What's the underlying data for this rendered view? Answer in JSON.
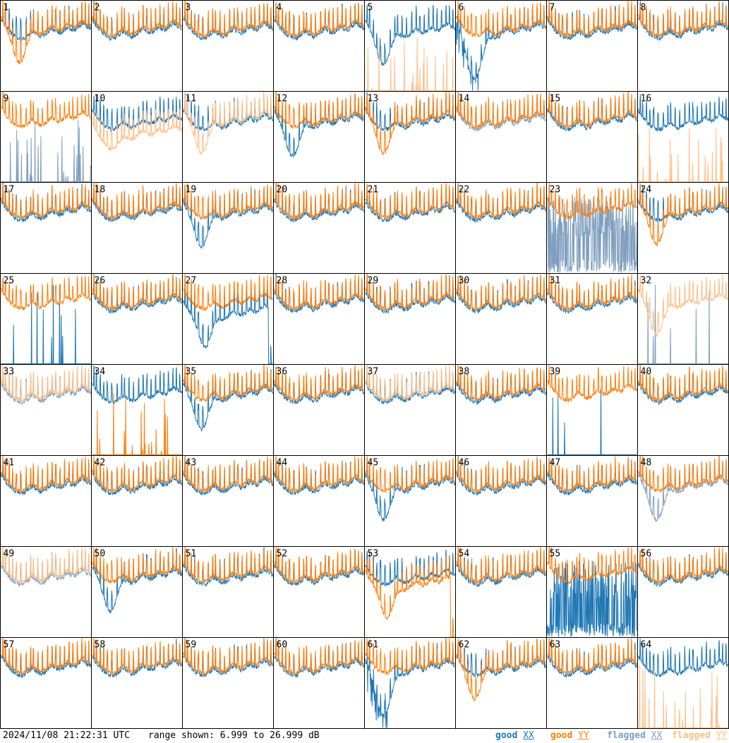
{
  "chart_data": {
    "type": "line",
    "panels": [
      1,
      2,
      3,
      4,
      5,
      6,
      7,
      8,
      9,
      10,
      11,
      12,
      13,
      14,
      15,
      16,
      17,
      18,
      19,
      20,
      21,
      22,
      23,
      24,
      25,
      26,
      27,
      28,
      29,
      30,
      31,
      32,
      33,
      34,
      35,
      36,
      37,
      38,
      39,
      40,
      41,
      42,
      43,
      44,
      45,
      46,
      47,
      48,
      49,
      50,
      51,
      52,
      53,
      54,
      55,
      56,
      57,
      58,
      59,
      60,
      61,
      62,
      63,
      64
    ],
    "range_db": [
      6.999,
      26.999
    ],
    "x_points": 260,
    "base_shape": [
      23.0,
      21.5,
      20.5,
      19.5,
      19.0,
      18.6,
      18.8,
      19.5,
      20.2,
      19.6,
      19.0,
      19.2,
      20.0,
      20.8,
      20.2,
      19.8,
      20.3,
      21.2,
      20.7,
      20.5,
      21.4,
      22.0,
      21.3,
      20.8
    ],
    "spur_positions": [
      0.02,
      0.05,
      0.09,
      0.13,
      0.17,
      0.22,
      0.28,
      0.33,
      0.36,
      0.41,
      0.46,
      0.52,
      0.57,
      0.61,
      0.66,
      0.71,
      0.76,
      0.8,
      0.85,
      0.9,
      0.94,
      0.98
    ],
    "series": [
      {
        "name": "good XX",
        "color": "#1f77b4"
      },
      {
        "name": "good YY",
        "color": "#ff7f0e"
      },
      {
        "name": "flagged XX",
        "color": "#7f9fbf"
      },
      {
        "name": "flagged YY",
        "color": "#ffbf87"
      }
    ],
    "variants": {
      "1": {
        "yy": "dip"
      },
      "5": {
        "xx": "dip",
        "yy": "low_spikes",
        "yy_flagged": true
      },
      "6": {
        "xx": "dip_deep"
      },
      "9": {
        "xx": "low_spikes",
        "xx_flagged": true
      },
      "10": {
        "yy": "low_smooth",
        "yy_flagged": true
      },
      "11": {
        "yy": "dip",
        "yy_flagged": true
      },
      "12": {
        "xx": "dip"
      },
      "13": {
        "yy": "dip"
      },
      "14": {
        "xx_flagged": true
      },
      "16": {
        "yy": "low_spikes",
        "yy_flagged": true
      },
      "19": {
        "xx": "dip"
      },
      "23": {
        "xx": "noise_low",
        "xx_flagged": true
      },
      "24": {
        "yy": "dip"
      },
      "25": {
        "xx": "sparse_spikes"
      },
      "27": {
        "xx": "dead_dip"
      },
      "32": {
        "yy": "dip",
        "yy_flagged": true,
        "xx": "sparse_spikes",
        "xx_flagged": true
      },
      "33": {
        "yy_flagged": true,
        "xx_flagged": true
      },
      "34": {
        "yy": "low_spikes"
      },
      "35": {
        "xx": "dip"
      },
      "37": {
        "yy_flagged": true
      },
      "39": {
        "xx": "sparse_spikes"
      },
      "45": {
        "xx": "dip"
      },
      "48": {
        "xx": "dip",
        "xx_flagged": true
      },
      "49": {
        "yy_flagged": true,
        "xx_flagged": true
      },
      "50": {
        "xx": "dip"
      },
      "53": {
        "yy": "dead_dip"
      },
      "55": {
        "xx": "noise_low"
      },
      "61": {
        "xx": "dip_deep"
      },
      "62": {
        "yy": "dip"
      },
      "64": {
        "yy": "low_spikes",
        "yy_flagged": true
      }
    }
  },
  "footer": {
    "timestamp": "2024/11/08 21:22:31 UTC",
    "range_text": "range shown: 6.999 to 26.999 dB",
    "legend": [
      {
        "text": "good ",
        "key": "XX",
        "color": "#1f77b4"
      },
      {
        "text": "good ",
        "key": "YY",
        "color": "#ff7f0e"
      },
      {
        "text": "flagged ",
        "key": "XX",
        "color": "#7f9fbf"
      },
      {
        "text": "flagged ",
        "key": "YY",
        "color": "#ffbf87"
      }
    ]
  }
}
